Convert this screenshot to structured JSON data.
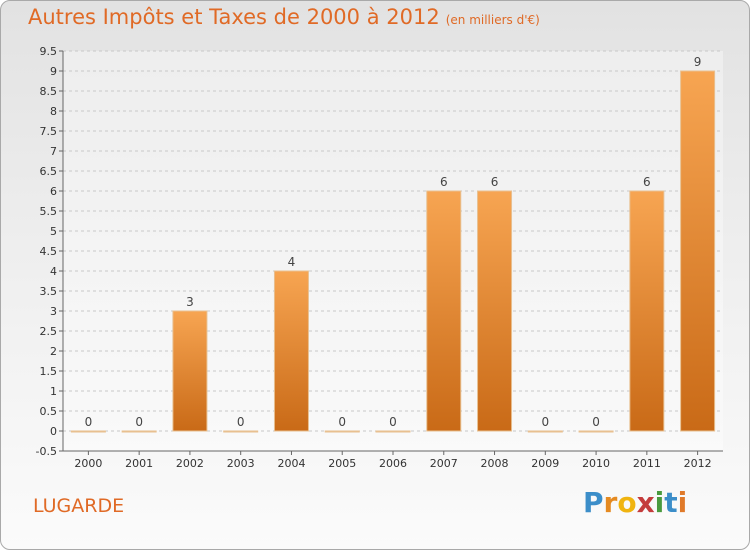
{
  "header": {
    "title": "Autres Impôts et Taxes de 2000 à 2012",
    "unit": "(en milliers d'€)"
  },
  "commune": "LUGARDE",
  "logo": {
    "letters": [
      "P",
      "r",
      "o",
      "x",
      "i",
      "t",
      "i"
    ],
    "colors": [
      "#3c8ec9",
      "#e58a21",
      "#f0b410",
      "#c43c3c",
      "#4a9a3e",
      "#3c8ec9",
      "#e07a2a"
    ]
  },
  "colors": {
    "accent": "#e06a26",
    "bar_top": "#f7a552",
    "bar_bottom": "#c96a17",
    "bar_edge": "#e8c090"
  },
  "chart_data": {
    "type": "bar",
    "categories": [
      "2000",
      "2001",
      "2002",
      "2003",
      "2004",
      "2005",
      "2006",
      "2007",
      "2008",
      "2009",
      "2010",
      "2011",
      "2012"
    ],
    "values": [
      0,
      0,
      3,
      0,
      4,
      0,
      0,
      6,
      6,
      0,
      0,
      6,
      9
    ],
    "ylim": [
      -0.5,
      9.5
    ],
    "yticks": [
      "-0.5",
      "0",
      "0.5",
      "1",
      "1.5",
      "2",
      "2.5",
      "3",
      "3.5",
      "4",
      "4.5",
      "5",
      "5.5",
      "6",
      "6.5",
      "7",
      "7.5",
      "8",
      "8.5",
      "9",
      "9.5"
    ],
    "grid": "horizontal-dashed",
    "xlabel": "",
    "ylabel": ""
  }
}
